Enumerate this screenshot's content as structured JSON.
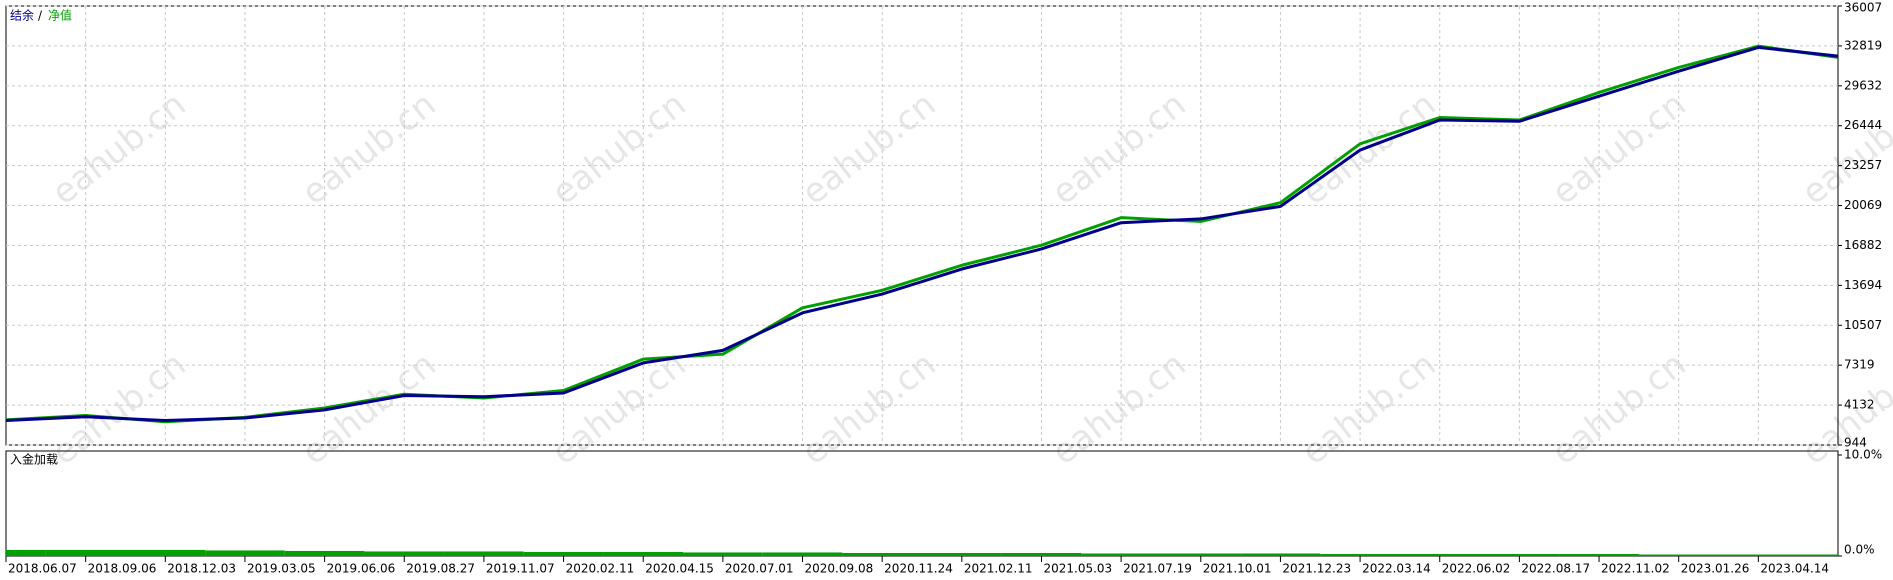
{
  "chart_data": [
    {
      "type": "line",
      "watermark": "eahub.cn",
      "legend_separator": "/",
      "categories": [
        "2018.06.07",
        "2018.09.06",
        "2018.12.03",
        "2019.03.05",
        "2019.06.06",
        "2019.08.27",
        "2019.11.07",
        "2020.02.11",
        "2020.04.15",
        "2020.07.01",
        "2020.09.08",
        "2020.11.24",
        "2021.02.11",
        "2021.05.03",
        "2021.07.19",
        "2021.10.01",
        "2021.12.23",
        "2022.03.14",
        "2022.06.02",
        "2022.08.17",
        "2022.11.02",
        "2023.01.26",
        "2023.04.14",
        null
      ],
      "series": [
        {
          "name": "结余",
          "color": "#00008b",
          "values": [
            2900,
            3200,
            2900,
            3100,
            3750,
            4900,
            4800,
            5100,
            7500,
            8500,
            11500,
            13000,
            15000,
            16600,
            18700,
            19000,
            20000,
            24500,
            26900,
            26800,
            28800,
            30800,
            32700,
            32000
          ]
        },
        {
          "name": "净值",
          "color": "#00a000",
          "values": [
            2950,
            3300,
            2800,
            3150,
            3900,
            5000,
            4700,
            5300,
            7800,
            8200,
            11900,
            13300,
            15300,
            16900,
            19100,
            18800,
            20300,
            25000,
            27100,
            26900,
            29100,
            31100,
            32800,
            31900
          ]
        }
      ],
      "ylim": [
        944,
        36007
      ],
      "yticks": [
        944,
        4132,
        7319,
        10507,
        13694,
        16882,
        20069,
        23257,
        26444,
        29632,
        32819,
        36007
      ],
      "grid": true
    },
    {
      "type": "bar",
      "title": "入金加载",
      "color": "#00a000",
      "values": [
        0.6,
        0.6,
        0.6,
        0.55,
        0.5,
        0.45,
        0.45,
        0.4,
        0.4,
        0.35,
        0.35,
        0.3,
        0.3,
        0.3,
        0.25,
        0.25,
        0.25,
        0.2,
        0.2,
        0.2,
        0.2,
        0.15,
        0.15,
        0.15
      ],
      "ylim": [
        0,
        10
      ],
      "yticks": [
        {
          "value": 0,
          "label": "0.0%"
        },
        {
          "value": 10,
          "label": "10.0%"
        }
      ]
    }
  ]
}
